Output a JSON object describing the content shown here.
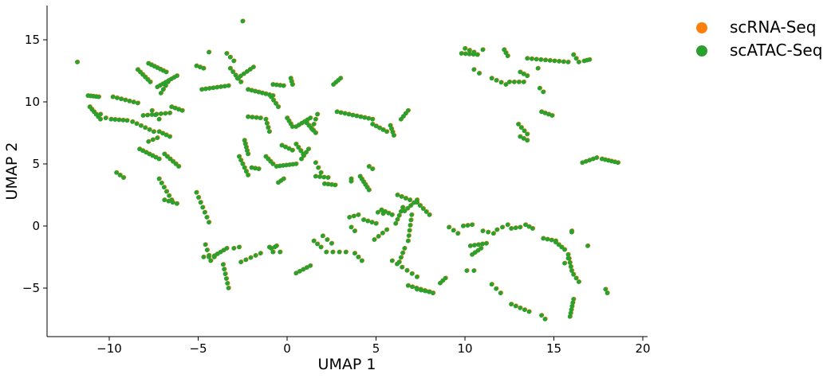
{
  "chart_data": {
    "type": "scatter",
    "title": "",
    "xlabel": "UMAP 1",
    "ylabel": "UMAP 2",
    "xlim": [
      -13.5,
      20.2
    ],
    "ylim": [
      -9.0,
      17.6
    ],
    "xticks": [
      -10,
      -5,
      0,
      5,
      10,
      15,
      20
    ],
    "yticks": [
      -5,
      0,
      5,
      10,
      15
    ],
    "xtick_labels": [
      "−10",
      "−5",
      "0",
      "5",
      "10",
      "15",
      "20"
    ],
    "ytick_labels": [
      "−5",
      "0",
      "5",
      "10",
      "15"
    ],
    "grid": false,
    "legend_position": "top-right, outside plot",
    "series": [
      {
        "name": "scRNA-Seq",
        "color": "#ff7f0e"
      },
      {
        "name": "scATAC-Seq",
        "color": "#2ca02c"
      }
    ],
    "point_segments": [
      [
        -11.8,
        13.2,
        -11.8,
        13.2,
        1
      ],
      [
        -11.2,
        10.5,
        -10.6,
        10.4,
        5
      ],
      [
        -11.1,
        9.6,
        -10.5,
        8.6,
        6
      ],
      [
        -9.8,
        10.4,
        -8.4,
        9.9,
        7
      ],
      [
        -8.4,
        12.6,
        -7.7,
        11.6,
        6
      ],
      [
        -7.8,
        13.1,
        -6.8,
        12.4,
        7
      ],
      [
        -7.3,
        11.2,
        -6.2,
        12.1,
        8
      ],
      [
        -7.1,
        10.7,
        -6.7,
        11.6,
        4
      ],
      [
        -9.9,
        8.6,
        -9.0,
        8.5,
        5
      ],
      [
        -8.7,
        8.4,
        -7.5,
        7.6,
        6
      ],
      [
        -8.1,
        8.9,
        -6.6,
        9.1,
        7
      ],
      [
        -6.5,
        9.6,
        -5.9,
        9.3,
        4
      ],
      [
        -7.6,
        9.3,
        -7.2,
        8.6,
        3
      ],
      [
        -7.2,
        7.6,
        -6.6,
        7.2,
        4
      ],
      [
        -8.3,
        6.2,
        -7.2,
        5.4,
        7
      ],
      [
        -6.9,
        5.8,
        -6.1,
        4.8,
        6
      ],
      [
        -7.2,
        3.8,
        -6.5,
        2.1,
        6
      ],
      [
        -6.9,
        2.1,
        -6.2,
        1.8,
        4
      ],
      [
        -9.6,
        4.3,
        -9.2,
        3.9,
        3
      ],
      [
        -7.8,
        6.8,
        -7.3,
        7.1,
        3
      ],
      [
        -5.1,
        12.9,
        -4.7,
        12.7,
        3
      ],
      [
        -4.8,
        11.0,
        -3.3,
        11.3,
        8
      ],
      [
        -3.4,
        13.9,
        -3.0,
        13.3,
        3
      ],
      [
        -3.2,
        12.7,
        -2.6,
        11.6,
        5
      ],
      [
        -2.8,
        11.9,
        -1.9,
        12.8,
        6
      ],
      [
        -4.4,
        14.0,
        -4.3,
        14.0,
        1
      ],
      [
        -2.5,
        16.5,
        -2.5,
        16.5,
        1
      ],
      [
        -2.2,
        11.0,
        -0.8,
        10.5,
        8
      ],
      [
        -0.9,
        10.4,
        -0.5,
        9.6,
        4
      ],
      [
        -2.2,
        8.8,
        -1.5,
        8.7,
        4
      ],
      [
        -1.2,
        8.6,
        -1.0,
        7.6,
        4
      ],
      [
        -0.8,
        11.4,
        -0.2,
        11.3,
        4
      ],
      [
        0.2,
        11.9,
        0.3,
        11.4,
        3
      ],
      [
        -2.4,
        6.9,
        -2.2,
        5.8,
        5
      ],
      [
        -2.7,
        5.6,
        -2.2,
        4.1,
        6
      ],
      [
        -2.0,
        4.7,
        -1.6,
        4.6,
        3
      ],
      [
        -1.2,
        5.6,
        -0.8,
        5.0,
        4
      ],
      [
        -0.6,
        4.8,
        0.5,
        5.0,
        7
      ],
      [
        -0.5,
        3.5,
        -0.2,
        3.8,
        3
      ],
      [
        0.5,
        6.6,
        0.9,
        5.8,
        4
      ],
      [
        0.0,
        8.7,
        0.3,
        8.0,
        4
      ],
      [
        0.5,
        8.0,
        1.3,
        8.7,
        6
      ],
      [
        1.1,
        8.3,
        1.6,
        7.5,
        5
      ],
      [
        1.7,
        9.0,
        1.4,
        7.8,
        4
      ],
      [
        1.2,
        6.2,
        0.8,
        5.4,
        4
      ],
      [
        1.6,
        5.1,
        1.9,
        4.3,
        3
      ],
      [
        -0.3,
        6.5,
        0.3,
        6.1,
        4
      ],
      [
        1.6,
        4.0,
        2.3,
        3.9,
        4
      ],
      [
        2.6,
        11.4,
        3.0,
        11.9,
        4
      ],
      [
        3.6,
        3.8,
        3.6,
        3.6,
        2
      ],
      [
        2.8,
        9.2,
        4.8,
        8.6,
        10
      ],
      [
        4.8,
        8.2,
        5.6,
        7.6,
        5
      ],
      [
        5.8,
        8.1,
        6.0,
        7.3,
        4
      ],
      [
        6.4,
        8.6,
        6.8,
        9.3,
        4
      ],
      [
        2.1,
        3.4,
        2.7,
        3.3,
        4
      ],
      [
        4.1,
        4.0,
        4.6,
        2.9,
        6
      ],
      [
        4.6,
        4.8,
        4.8,
        4.6,
        2
      ],
      [
        3.5,
        0.7,
        4.0,
        0.9,
        3
      ],
      [
        4.3,
        0.5,
        5.0,
        0.2,
        4
      ],
      [
        5.3,
        1.3,
        5.9,
        0.9,
        4
      ],
      [
        6.1,
        0.2,
        6.5,
        1.5,
        5
      ],
      [
        6.6,
        1.2,
        7.3,
        2.1,
        5
      ],
      [
        6.2,
        2.5,
        6.9,
        2.1,
        4
      ],
      [
        7.3,
        1.9,
        8.0,
        0.9,
        5
      ],
      [
        7.0,
        0.9,
        6.8,
        -1.2,
        6
      ],
      [
        6.6,
        -1.8,
        6.3,
        -2.9,
        4
      ],
      [
        -4.6,
        -1.5,
        -4.3,
        -2.8,
        4
      ],
      [
        -5.1,
        2.7,
        -4.4,
        0.3,
        7
      ],
      [
        -4.1,
        -2.4,
        -3.4,
        -1.8,
        5
      ],
      [
        -4.7,
        -2.5,
        -4.1,
        -2.5,
        3
      ],
      [
        -3.6,
        -3.1,
        -3.3,
        -5.0,
        6
      ],
      [
        -3.0,
        -1.8,
        -2.7,
        -1.7,
        2
      ],
      [
        -2.6,
        -2.9,
        -1.5,
        -2.2,
        5
      ],
      [
        -1.0,
        -1.7,
        -0.7,
        -1.7,
        2
      ],
      [
        -0.9,
        -1.8,
        -0.8,
        -2.1,
        2
      ],
      [
        -0.6,
        -1.6,
        -0.4,
        -2.1,
        2
      ],
      [
        0.5,
        -3.8,
        1.3,
        -3.2,
        5
      ],
      [
        1.5,
        -1.2,
        1.9,
        -1.7,
        3
      ],
      [
        2.0,
        -0.8,
        2.5,
        -1.4,
        3
      ],
      [
        2.2,
        -2.1,
        3.3,
        -2.1,
        4
      ],
      [
        3.8,
        -2.2,
        4.2,
        -2.8,
        3
      ],
      [
        4.9,
        -1.1,
        5.6,
        -0.3,
        4
      ],
      [
        5.9,
        -2.8,
        7.3,
        -4.1,
        6
      ],
      [
        6.8,
        -4.8,
        8.2,
        -5.4,
        7
      ],
      [
        7.3,
        -5.1,
        8.0,
        -5.3,
        4
      ],
      [
        8.6,
        -4.6,
        8.9,
        -4.2,
        3
      ],
      [
        9.1,
        -0.1,
        9.6,
        -0.6,
        3
      ],
      [
        9.9,
        0.0,
        10.4,
        0.1,
        3
      ],
      [
        10.3,
        -1.6,
        11.2,
        -1.4,
        5
      ],
      [
        10.4,
        -2.3,
        10.9,
        -1.8,
        4
      ],
      [
        10.1,
        -3.6,
        10.5,
        -3.6,
        2
      ],
      [
        11.0,
        -0.4,
        11.6,
        -0.6,
        3
      ],
      [
        11.8,
        -0.3,
        12.4,
        0.1,
        3
      ],
      [
        12.6,
        -0.2,
        13.1,
        -0.1,
        3
      ],
      [
        13.4,
        0.1,
        13.8,
        -0.2,
        3
      ],
      [
        11.5,
        -4.7,
        12.0,
        -5.4,
        3
      ],
      [
        12.6,
        -6.3,
        13.6,
        -6.9,
        5
      ],
      [
        14.3,
        -7.2,
        14.5,
        -7.5,
        2
      ],
      [
        14.4,
        -1.0,
        15.1,
        -1.2,
        4
      ],
      [
        15.1,
        -1.3,
        15.6,
        -1.9,
        4
      ],
      [
        15.8,
        -2.3,
        16.0,
        -3.6,
        5
      ],
      [
        16.1,
        -3.9,
        16.4,
        -4.5,
        3
      ],
      [
        16.1,
        -5.9,
        15.9,
        -7.3,
        6
      ],
      [
        16.0,
        -0.5,
        16.0,
        -0.4,
        2
      ],
      [
        16.9,
        -1.6,
        16.9,
        -1.6,
        1
      ],
      [
        15.6,
        -3.0,
        15.8,
        -2.6,
        2
      ],
      [
        17.9,
        -5.1,
        18.0,
        -5.4,
        2
      ],
      [
        16.6,
        5.1,
        17.4,
        5.5,
        5
      ],
      [
        17.7,
        5.4,
        18.6,
        5.1,
        6
      ],
      [
        9.8,
        13.9,
        10.7,
        13.8,
        5
      ],
      [
        10.0,
        14.3,
        10.5,
        14.0,
        3
      ],
      [
        11.0,
        14.2,
        11.0,
        14.2,
        1
      ],
      [
        12.2,
        14.2,
        12.4,
        13.7,
        3
      ],
      [
        13.5,
        13.5,
        15.8,
        13.2,
        10
      ],
      [
        16.1,
        13.8,
        16.4,
        13.2,
        3
      ],
      [
        16.7,
        13.3,
        17.0,
        13.4,
        3
      ],
      [
        11.5,
        11.9,
        12.3,
        11.4,
        4
      ],
      [
        12.5,
        11.6,
        13.3,
        11.6,
        4
      ],
      [
        13.1,
        12.4,
        13.5,
        12.1,
        3
      ],
      [
        14.2,
        11.1,
        14.4,
        10.8,
        2
      ],
      [
        14.1,
        12.7,
        14.2,
        12.7,
        1
      ],
      [
        13.0,
        8.2,
        13.5,
        7.4,
        4
      ],
      [
        13.1,
        7.2,
        13.5,
        6.9,
        3
      ],
      [
        14.3,
        9.2,
        14.9,
        8.9,
        4
      ],
      [
        10.5,
        12.6,
        10.8,
        12.3,
        2
      ],
      [
        -10.5,
        9.0,
        -10.2,
        8.7,
        2
      ],
      [
        5.1,
        1.1,
        5.4,
        1.0,
        2
      ],
      [
        3.6,
        -0.1,
        3.8,
        -0.4,
        2
      ]
    ]
  },
  "legend": {
    "items": [
      {
        "label": "scRNA-Seq",
        "color": "#ff7f0e"
      },
      {
        "label": "scATAC-Seq",
        "color": "#2ca02c"
      }
    ]
  }
}
